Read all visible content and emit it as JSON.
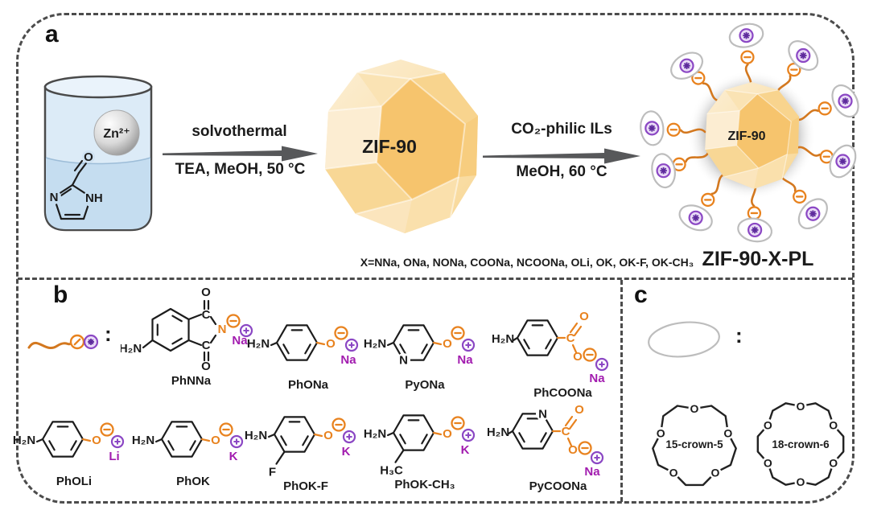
{
  "colors": {
    "orange": "#E8821E",
    "chain_orange": "#D3781F",
    "purple": "#A21CAF",
    "badge_purple": "#8B47C4",
    "star_purple": "#5E2B9D",
    "arrow_gray": "#57585A",
    "crystal_dark": "#F6C46D",
    "crystal_light": "#FBE8C6",
    "beaker_blue": "#DCEBF7",
    "liquid_blue": "#C5DDF0",
    "oval_gray": "#BDBDBD"
  },
  "panel_a": {
    "label": "a",
    "beaker": {
      "cation": "Zn²⁺",
      "ring_n": "N",
      "ring_nh": "NH",
      "aldehyde_o": "O"
    },
    "arrow1": {
      "top": "solvothermal",
      "bottom": "TEA, MeOH, 50 °C"
    },
    "zif90_label": "ZIF-90",
    "arrow2": {
      "top": "CO₂-philic ILs",
      "bottom": "MeOH, 60 °C"
    },
    "particle_label": "ZIF-90",
    "x_note": "X=NNa, ONa, NONa, COONa, NCOONa, OLi, OK, OK-F, OK-CH₃",
    "product_name": "ZIF-90-X-PL"
  },
  "panel_b": {
    "label": "b",
    "colon": ":",
    "molecules": [
      {
        "name": "PhNNa",
        "type": "imide",
        "amine": "H₂N",
        "n": "N",
        "o": "O",
        "c": "C",
        "cation": "Na"
      },
      {
        "name": "PhONa",
        "type": "phenolate",
        "amine": "H₂N",
        "o": "O",
        "cation": "Na"
      },
      {
        "name": "PyONa",
        "type": "phenolate",
        "amine": "H₂N",
        "o": "O",
        "ringN": "N",
        "cation": "Na"
      },
      {
        "name": "PhCOONa",
        "type": "carboxylate",
        "amine": "H₂N",
        "o": "O",
        "c": "C",
        "cation": "Na"
      },
      {
        "name": "PhOLi",
        "type": "phenolate",
        "amine": "H₂N",
        "o": "O",
        "cation": "Li"
      },
      {
        "name": "PhOK",
        "type": "phenolate",
        "amine": "H₂N",
        "o": "O",
        "cation": "K"
      },
      {
        "name": "PhOK-F",
        "type": "phenolate",
        "amine": "H₂N",
        "o": "O",
        "sub": "F",
        "cation": "K"
      },
      {
        "name": "PhOK-CH₃",
        "type": "phenolate",
        "amine": "H₂N",
        "o": "O",
        "sub": "H₃C",
        "cation": "K"
      },
      {
        "name": "PyCOONa",
        "type": "carboxylate",
        "amine": "H₂N",
        "o": "O",
        "c": "C",
        "ringN": "N",
        "cation": "Na"
      }
    ]
  },
  "panel_c": {
    "label": "c",
    "colon": ":",
    "crowns": [
      {
        "name": "15-crown-5",
        "oxygens": 5,
        "o_label": "O"
      },
      {
        "name": "18-crown-6",
        "oxygens": 6,
        "o_label": "O"
      }
    ]
  }
}
